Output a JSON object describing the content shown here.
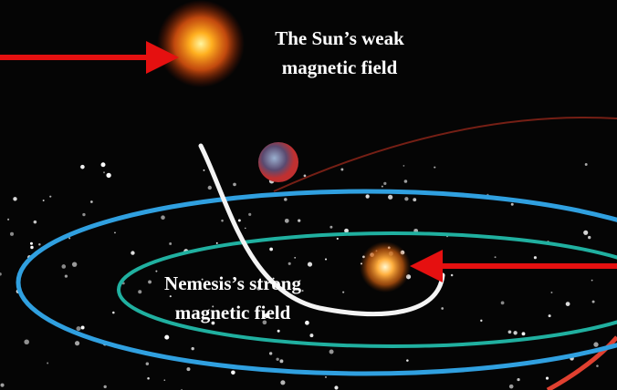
{
  "sun_label": [
    "The Sun’s weak",
    "magnetic field"
  ],
  "nemesis_label": [
    "Nemesis’s strong",
    "magnetic field"
  ]
}
